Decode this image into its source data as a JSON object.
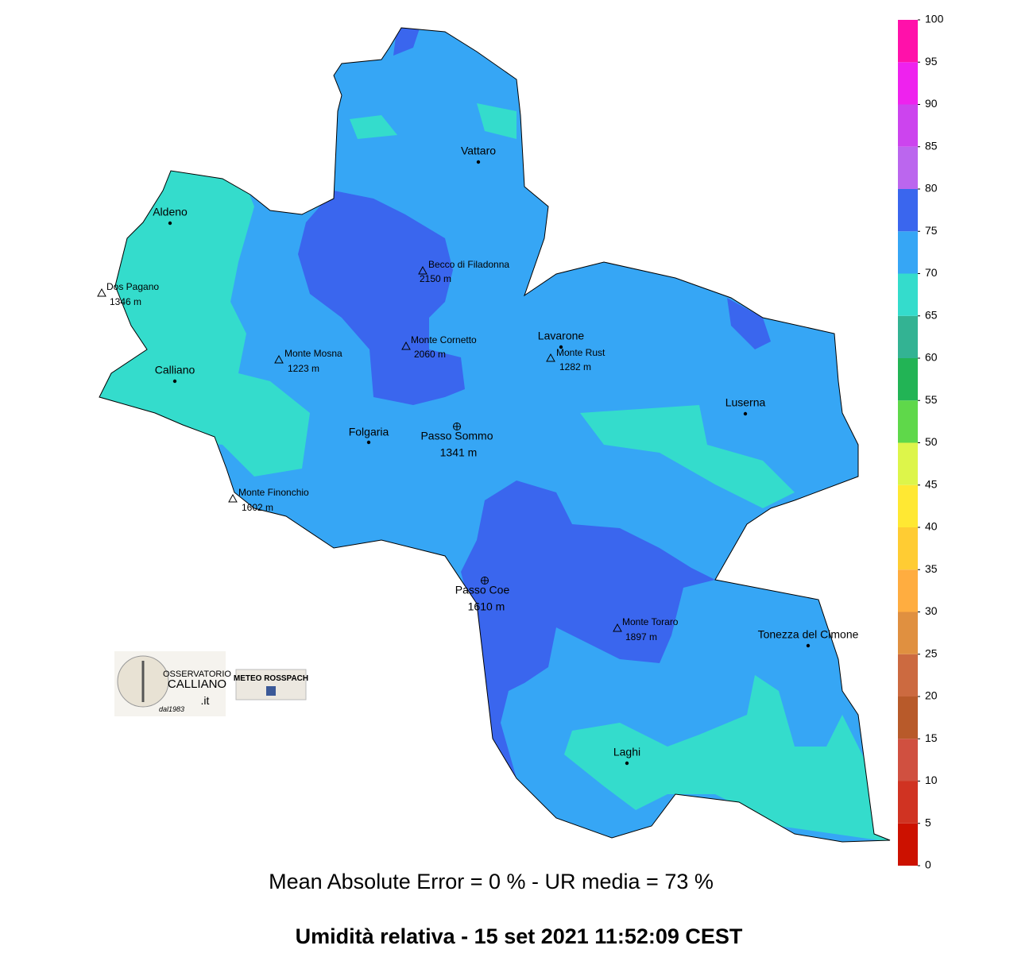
{
  "map": {
    "places": [
      {
        "name": "Vattaro",
        "kind": "town"
      },
      {
        "name": "Aldeno",
        "kind": "town"
      },
      {
        "name": "Calliano",
        "kind": "town"
      },
      {
        "name": "Lavarone",
        "kind": "town"
      },
      {
        "name": "Folgaria",
        "kind": "town"
      },
      {
        "name": "Luserna",
        "kind": "town"
      },
      {
        "name": "Tonezza del Cimone",
        "kind": "town"
      },
      {
        "name": "Laghi",
        "kind": "town"
      },
      {
        "name": "Becco di Filadonna",
        "elevation": "2150 m",
        "kind": "peak"
      },
      {
        "name": "Dos Pagano",
        "elevation": "1346 m",
        "kind": "peak"
      },
      {
        "name": "Monte Cornetto",
        "elevation": "2060 m",
        "kind": "peak"
      },
      {
        "name": "Monte Mosna",
        "elevation": "1223 m",
        "kind": "peak"
      },
      {
        "name": "Monte Rust",
        "elevation": "1282 m",
        "kind": "peak"
      },
      {
        "name": "Monte Finonchio",
        "elevation": "1602 m",
        "kind": "peak"
      },
      {
        "name": "Monte Toraro",
        "elevation": "1897 m",
        "kind": "peak"
      },
      {
        "name": "Passo Sommo",
        "elevation": "1341 m",
        "kind": "pass"
      },
      {
        "name": "Passo Coe",
        "elevation": "1610 m",
        "kind": "pass"
      }
    ],
    "legend": {
      "ticks": [
        0,
        5,
        10,
        15,
        20,
        25,
        30,
        35,
        40,
        45,
        50,
        55,
        60,
        65,
        70,
        75,
        80,
        85,
        90,
        95,
        100
      ],
      "colors": [
        "#cc1100",
        "#d03322",
        "#d05040",
        "#b85a2a",
        "#cc6a40",
        "#e09040",
        "#ffad40",
        "#ffcc33",
        "#ffe833",
        "#ddf54a",
        "#5fd84a",
        "#22b455",
        "#33b393",
        "#34dccc",
        "#36a6f5",
        "#3a66ee",
        "#bb66ee",
        "#cc44ee",
        "#ee22ee",
        "#ff11aa"
      ]
    },
    "stats": "Mean Absolute Error = 0 %  -  UR media = 73 %",
    "title": "Umidità relativa  -  15 set 2021 11:52:09  CEST",
    "logos": {
      "observatory": [
        "OSSERVATORIO",
        "CALLIANO",
        ".it",
        "dal1983"
      ],
      "meteo": "METEO ROSSPACH"
    }
  }
}
